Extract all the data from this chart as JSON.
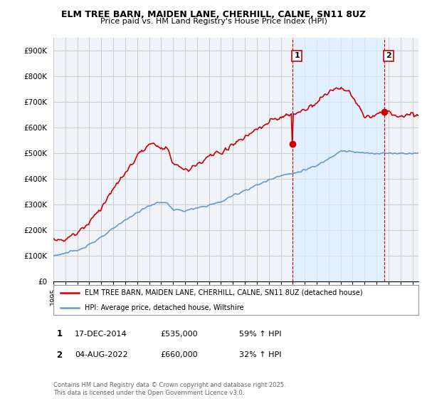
{
  "title1": "ELM TREE BARN, MAIDEN LANE, CHERHILL, CALNE, SN11 8UZ",
  "title2": "Price paid vs. HM Land Registry's House Price Index (HPI)",
  "ylim": [
    0,
    950000
  ],
  "yticks": [
    0,
    100000,
    200000,
    300000,
    400000,
    500000,
    600000,
    700000,
    800000,
    900000
  ],
  "ytick_labels": [
    "£0",
    "£100K",
    "£200K",
    "£300K",
    "£400K",
    "£500K",
    "£600K",
    "£700K",
    "£800K",
    "£900K"
  ],
  "sale1_label": "17-DEC-2014",
  "sale1_price_str": "£535,000",
  "sale1_pct": "59% ↑ HPI",
  "sale2_label": "04-AUG-2022",
  "sale2_price_str": "£660,000",
  "sale2_pct": "32% ↑ HPI",
  "legend_red": "ELM TREE BARN, MAIDEN LANE, CHERHILL, CALNE, SN11 8UZ (detached house)",
  "legend_blue": "HPI: Average price, detached house, Wiltshire",
  "footnote": "Contains HM Land Registry data © Crown copyright and database right 2025.\nThis data is licensed under the Open Government Licence v3.0.",
  "red_color": "#cc0000",
  "blue_color": "#6699cc",
  "shade_color": "#ddeeff",
  "grid_color": "#cccccc",
  "bg_color": "#ffffff",
  "plot_bg": "#f0f4f8"
}
